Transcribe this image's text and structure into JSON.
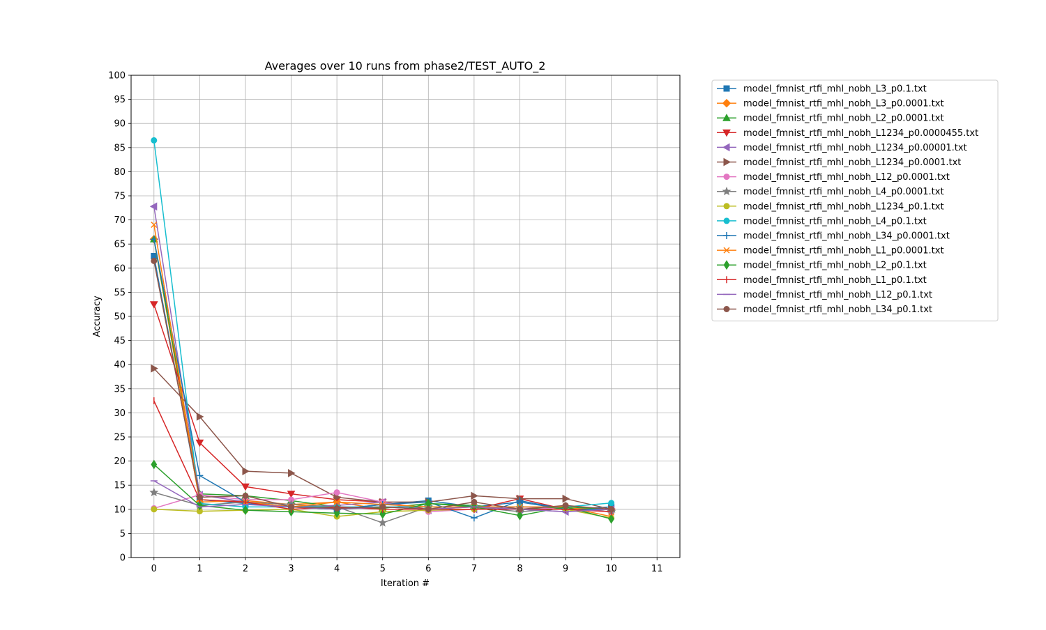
{
  "chart_data": {
    "type": "line",
    "title": "Averages over 10 runs from phase2/TEST_AUTO_2",
    "xlabel": "Iteration #",
    "ylabel": "Accuracy",
    "xlim": [
      -0.5,
      11.5
    ],
    "ylim": [
      0,
      100
    ],
    "x_ticks": [
      0,
      1,
      2,
      3,
      4,
      5,
      6,
      7,
      8,
      9,
      10,
      11
    ],
    "y_ticks": [
      0,
      5,
      10,
      15,
      20,
      25,
      30,
      35,
      40,
      45,
      50,
      55,
      60,
      65,
      70,
      75,
      80,
      85,
      90,
      95,
      100
    ],
    "grid": true,
    "legend_position": "outside-top-right",
    "x": [
      0,
      1,
      2,
      3,
      4,
      5,
      6,
      7,
      8,
      9,
      10
    ],
    "series": [
      {
        "name": "model_fmnist_rtfi_mhl_nobh_L3_p0.1.txt",
        "color": "#1f77b4",
        "marker": "square",
        "values": [
          62.5,
          12.0,
          11.2,
          10.5,
          10.0,
          11.0,
          11.8,
          10.5,
          11.5,
          10.0,
          10.5
        ]
      },
      {
        "name": "model_fmnist_rtfi_mhl_nobh_L3_p0.0001.txt",
        "color": "#ff7f0e",
        "marker": "diamond",
        "values": [
          66.0,
          11.5,
          11.8,
          11.0,
          11.5,
          10.0,
          10.0,
          10.5,
          10.5,
          10.2,
          10.0
        ]
      },
      {
        "name": "model_fmnist_rtfi_mhl_nobh_L2_p0.0001.txt",
        "color": "#2ca02c",
        "marker": "triangle-up",
        "values": [
          66.0,
          13.2,
          12.8,
          11.8,
          10.5,
          10.2,
          11.2,
          10.8,
          10.0,
          10.5,
          10.0
        ]
      },
      {
        "name": "model_fmnist_rtfi_mhl_nobh_L1234_p0.0000455.txt",
        "color": "#d62728",
        "marker": "triangle-down",
        "values": [
          52.5,
          23.8,
          14.7,
          13.2,
          12.0,
          11.5,
          10.0,
          10.0,
          12.2,
          10.0,
          9.5
        ]
      },
      {
        "name": "model_fmnist_rtfi_mhl_nobh_L1234_p0.00001.txt",
        "color": "#9467bd",
        "marker": "triangle-left",
        "values": [
          72.8,
          13.0,
          11.5,
          10.5,
          10.8,
          11.5,
          9.8,
          10.0,
          10.0,
          9.5,
          10.0
        ]
      },
      {
        "name": "model_fmnist_rtfi_mhl_nobh_L1234_p0.0001.txt",
        "color": "#8c564b",
        "marker": "triangle-right",
        "values": [
          39.2,
          29.2,
          17.9,
          17.5,
          12.5,
          11.5,
          11.5,
          12.8,
          12.2,
          12.2,
          10.0
        ]
      },
      {
        "name": "model_fmnist_rtfi_mhl_nobh_L12_p0.0001.txt",
        "color": "#e377c2",
        "marker": "circle-pent",
        "values": [
          10.2,
          13.0,
          12.0,
          12.0,
          13.5,
          11.5,
          9.5,
          10.0,
          10.5,
          10.0,
          9.5
        ]
      },
      {
        "name": "model_fmnist_rtfi_mhl_nobh_L4_p0.0001.txt",
        "color": "#7f7f7f",
        "marker": "star",
        "values": [
          13.5,
          10.8,
          11.5,
          11.0,
          10.5,
          7.2,
          10.5,
          10.5,
          9.5,
          10.2,
          9.5
        ]
      },
      {
        "name": "model_fmnist_rtfi_mhl_nobh_L1234_p0.1.txt",
        "color": "#bcbd22",
        "marker": "circle",
        "values": [
          10.0,
          9.6,
          9.8,
          10.0,
          8.5,
          9.5,
          9.8,
          10.0,
          10.0,
          10.0,
          8.2
        ]
      },
      {
        "name": "model_fmnist_rtfi_mhl_nobh_L4_p0.1.txt",
        "color": "#17becf",
        "marker": "circle-oct",
        "values": [
          86.5,
          11.2,
          10.5,
          10.5,
          10.5,
          10.5,
          10.5,
          10.5,
          10.5,
          10.5,
          11.3
        ]
      },
      {
        "name": "model_fmnist_rtfi_mhl_nobh_L34_p0.0001.txt",
        "color": "#1f77b4",
        "marker": "plus",
        "values": [
          66.0,
          17.0,
          11.5,
          10.5,
          10.0,
          11.0,
          11.5,
          8.2,
          11.8,
          10.0,
          10.0
        ]
      },
      {
        "name": "model_fmnist_rtfi_mhl_nobh_L1_p0.0001.txt",
        "color": "#ff7f0e",
        "marker": "x",
        "values": [
          69.0,
          12.0,
          11.5,
          10.5,
          11.5,
          11.0,
          10.5,
          10.5,
          10.5,
          10.5,
          8.5
        ]
      },
      {
        "name": "model_fmnist_rtfi_mhl_nobh_L2_p0.1.txt",
        "color": "#2ca02c",
        "marker": "thin-diamond",
        "values": [
          19.3,
          10.8,
          9.8,
          9.5,
          9.2,
          9.0,
          11.2,
          10.5,
          8.7,
          10.5,
          8.0
        ]
      },
      {
        "name": "model_fmnist_rtfi_mhl_nobh_L1_p0.1.txt",
        "color": "#d62728",
        "marker": "vline",
        "values": [
          32.5,
          12.0,
          11.5,
          10.0,
          10.5,
          10.0,
          10.0,
          10.0,
          10.0,
          10.0,
          9.5
        ]
      },
      {
        "name": "model_fmnist_rtfi_mhl_nobh_L12_p0.1.txt",
        "color": "#9467bd",
        "marker": "hline",
        "values": [
          15.9,
          10.5,
          11.0,
          10.5,
          10.0,
          10.5,
          10.0,
          10.5,
          10.0,
          9.5,
          10.0
        ]
      },
      {
        "name": "model_fmnist_rtfi_mhl_nobh_L34_p0.1.txt",
        "color": "#8c564b",
        "marker": "circle",
        "values": [
          61.5,
          12.5,
          12.8,
          10.5,
          10.2,
          10.5,
          10.0,
          11.5,
          10.0,
          10.8,
          10.0
        ]
      }
    ]
  }
}
